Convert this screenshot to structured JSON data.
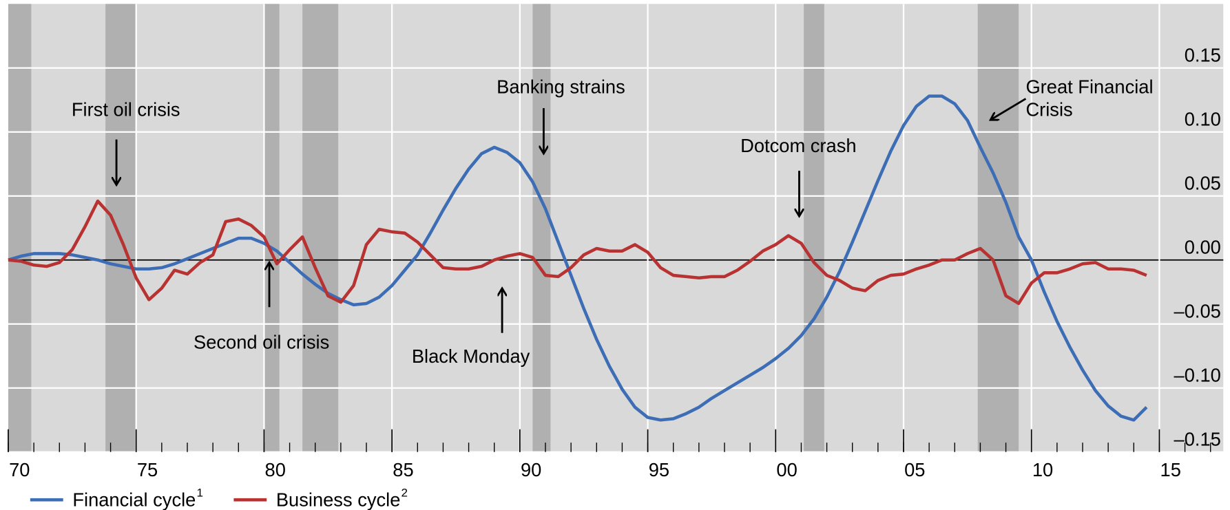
{
  "chart_data": {
    "type": "line",
    "x": [
      1970,
      1970.5,
      1971,
      1971.5,
      1972,
      1972.5,
      1973,
      1973.5,
      1974,
      1974.5,
      1975,
      1975.5,
      1976,
      1976.5,
      1977,
      1977.5,
      1978,
      1978.5,
      1979,
      1979.5,
      1980,
      1980.5,
      1981,
      1981.5,
      1982,
      1982.5,
      1983,
      1983.5,
      1984,
      1984.5,
      1985,
      1985.5,
      1986,
      1986.5,
      1987,
      1987.5,
      1988,
      1988.5,
      1989,
      1989.5,
      1990,
      1990.5,
      1991,
      1991.5,
      1992,
      1992.5,
      1993,
      1993.5,
      1994,
      1994.5,
      1995,
      1995.5,
      1996,
      1996.5,
      1997,
      1997.5,
      1998,
      1998.5,
      1999,
      1999.5,
      2000,
      2000.5,
      2001,
      2001.5,
      2002,
      2002.5,
      2003,
      2003.5,
      2004,
      2004.5,
      2005,
      2005.5,
      2006,
      2006.5,
      2007,
      2007.5,
      2008,
      2008.5,
      2009,
      2009.5,
      2010,
      2010.5,
      2011,
      2011.5,
      2012,
      2012.5,
      2013,
      2013.5,
      2014,
      2014.5
    ],
    "series": [
      {
        "name": "Financial cycle",
        "note": "1",
        "color": "#3d6db5",
        "values": [
          0,
          0.003,
          0.005,
          0.005,
          0.005,
          0.004,
          0.002,
          0,
          -0.003,
          -0.005,
          -0.007,
          -0.007,
          -0.006,
          -0.003,
          0.001,
          0.005,
          0.009,
          0.013,
          0.017,
          0.017,
          0.013,
          0.007,
          -0.002,
          -0.011,
          -0.019,
          -0.026,
          -0.031,
          -0.035,
          -0.034,
          -0.029,
          -0.02,
          -0.008,
          0.004,
          0.021,
          0.039,
          0.056,
          0.071,
          0.083,
          0.088,
          0.084,
          0.076,
          0.061,
          0.04,
          0.014,
          -0.012,
          -0.038,
          -0.062,
          -0.083,
          -0.101,
          -0.115,
          -0.123,
          -0.125,
          -0.124,
          -0.12,
          -0.115,
          -0.108,
          -0.102,
          -0.096,
          -0.09,
          -0.084,
          -0.077,
          -0.069,
          -0.059,
          -0.046,
          -0.029,
          -0.009,
          0.014,
          0.038,
          0.062,
          0.085,
          0.105,
          0.12,
          0.128,
          0.128,
          0.122,
          0.109,
          0.088,
          0.068,
          0.045,
          0.018,
          0,
          -0.025,
          -0.048,
          -0.068,
          -0.086,
          -0.102,
          -0.114,
          -0.122,
          -0.125,
          -0.115
        ]
      },
      {
        "name": "Business cycle",
        "note": "2",
        "color": "#b83232",
        "values": [
          0,
          -0.001,
          -0.004,
          -0.005,
          -0.002,
          0.008,
          0.026,
          0.046,
          0.035,
          0.012,
          -0.014,
          -0.031,
          -0.022,
          -0.008,
          -0.011,
          -0.002,
          0.004,
          0.03,
          0.032,
          0.027,
          0.018,
          -0.003,
          0.008,
          0.018,
          -0.006,
          -0.028,
          -0.033,
          -0.02,
          0.012,
          0.024,
          0.022,
          0.021,
          0.014,
          0.004,
          -0.006,
          -0.007,
          -0.007,
          -0.005,
          0,
          0.003,
          0.005,
          0.002,
          -0.012,
          -0.013,
          -0.006,
          0.004,
          0.009,
          0.007,
          0.007,
          0.012,
          0.006,
          -0.006,
          -0.012,
          -0.013,
          -0.014,
          -0.013,
          -0.013,
          -0.008,
          -0.001,
          0.007,
          0.012,
          0.019,
          0.013,
          -0.002,
          -0.012,
          -0.016,
          -0.022,
          -0.024,
          -0.016,
          -0.012,
          -0.011,
          -0.007,
          -0.004,
          0,
          0,
          0.005,
          0.009,
          0,
          -0.028,
          -0.034,
          -0.018,
          -0.01,
          -0.01,
          -0.007,
          -0.003,
          -0.002,
          -0.007,
          -0.007,
          -0.008,
          -0.012
        ]
      }
    ],
    "xlim": [
      1970,
      2017.5
    ],
    "xticks": [
      {
        "value": 1970,
        "label": "70"
      },
      {
        "value": 1975,
        "label": "75"
      },
      {
        "value": 1980,
        "label": "80"
      },
      {
        "value": 1985,
        "label": "85"
      },
      {
        "value": 1990,
        "label": "90"
      },
      {
        "value": 1995,
        "label": "95"
      },
      {
        "value": 2000,
        "label": "00"
      },
      {
        "value": 2005,
        "label": "05"
      },
      {
        "value": 2010,
        "label": "10"
      },
      {
        "value": 2015,
        "label": "15"
      }
    ],
    "ylim": [
      -0.15,
      0.2
    ],
    "yticks": [
      {
        "value": 0.15,
        "label": "0.15"
      },
      {
        "value": 0.1,
        "label": "0.10"
      },
      {
        "value": 0.05,
        "label": "0.05"
      },
      {
        "value": 0,
        "label": "0.00"
      },
      {
        "value": -0.05,
        "label": "–0.05"
      },
      {
        "value": -0.1,
        "label": "–0.10"
      },
      {
        "value": -0.15,
        "label": "–0.15"
      }
    ],
    "grid": true,
    "recessions": [
      [
        1970,
        1970.9
      ],
      [
        1973.8,
        1975.0
      ],
      [
        1980.0,
        1980.6
      ],
      [
        1981.5,
        1982.9
      ],
      [
        1990.5,
        1991.2
      ],
      [
        2001.1,
        2001.9
      ],
      [
        2007.9,
        2009.5
      ]
    ],
    "annotations": [
      [
        "First oil crisis"
      ],
      [
        "Second oil crisis"
      ],
      [
        "Black Monday"
      ],
      [
        "Banking strains"
      ],
      [
        "Dotcom crash"
      ],
      [
        "Great Financial",
        "Crisis"
      ]
    ]
  }
}
